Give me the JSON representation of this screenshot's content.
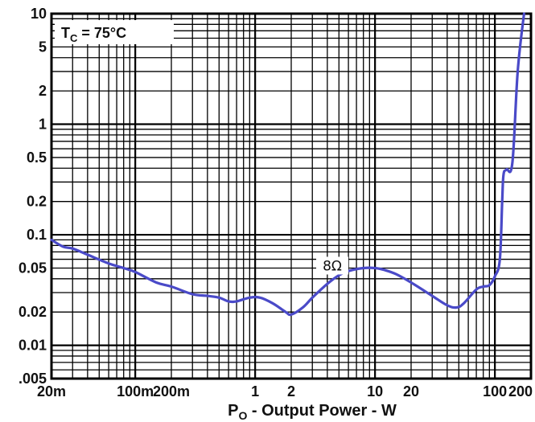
{
  "chart_data": {
    "type": "line",
    "title": "",
    "xlabel": {
      "main": "P",
      "sub": "O",
      "rest": " - Output Power - W"
    },
    "ylabel": "",
    "xscale": "log",
    "yscale": "log",
    "xlim": [
      0.02,
      200
    ],
    "ylim": [
      0.005,
      10
    ],
    "grid": true,
    "annotation": {
      "main": "T",
      "sub": "C",
      "rest": " = 75°C"
    },
    "x_ticks": [
      {
        "v": 0.02,
        "label": "20m"
      },
      {
        "v": 0.1,
        "label": "100m"
      },
      {
        "v": 0.2,
        "label": "200m"
      },
      {
        "v": 1,
        "label": "1"
      },
      {
        "v": 2,
        "label": "2"
      },
      {
        "v": 10,
        "label": "10"
      },
      {
        "v": 20,
        "label": "20"
      },
      {
        "v": 100,
        "label": "100"
      },
      {
        "v": 200,
        "label": "200"
      }
    ],
    "y_ticks": [
      {
        "v": 10,
        "label": "10"
      },
      {
        "v": 5,
        "label": "5"
      },
      {
        "v": 2,
        "label": "2"
      },
      {
        "v": 1,
        "label": "1"
      },
      {
        "v": 0.5,
        "label": "0.5"
      },
      {
        "v": 0.2,
        "label": "0.2"
      },
      {
        "v": 0.1,
        "label": "0.1"
      },
      {
        "v": 0.05,
        "label": "0.05"
      },
      {
        "v": 0.02,
        "label": "0.02"
      },
      {
        "v": 0.01,
        "label": "0.01"
      },
      {
        "v": 0.005,
        "label": ".005"
      }
    ],
    "series": [
      {
        "name": "8Ω",
        "color": "#4a4ac8",
        "points": [
          [
            0.02,
            0.09
          ],
          [
            0.025,
            0.078
          ],
          [
            0.03,
            0.075
          ],
          [
            0.04,
            0.066
          ],
          [
            0.06,
            0.055
          ],
          [
            0.08,
            0.05
          ],
          [
            0.1,
            0.046
          ],
          [
            0.15,
            0.037
          ],
          [
            0.2,
            0.034
          ],
          [
            0.3,
            0.029
          ],
          [
            0.4,
            0.028
          ],
          [
            0.5,
            0.027
          ],
          [
            0.6,
            0.025
          ],
          [
            0.7,
            0.025
          ],
          [
            0.9,
            0.027
          ],
          [
            1.1,
            0.027
          ],
          [
            1.4,
            0.024
          ],
          [
            1.8,
            0.02
          ],
          [
            2.0,
            0.019
          ],
          [
            2.5,
            0.022
          ],
          [
            3.0,
            0.027
          ],
          [
            4.0,
            0.036
          ],
          [
            5.0,
            0.043
          ],
          [
            6.0,
            0.047
          ],
          [
            8.0,
            0.05
          ],
          [
            10.0,
            0.05
          ],
          [
            12.0,
            0.048
          ],
          [
            15.0,
            0.044
          ],
          [
            20.0,
            0.037
          ],
          [
            30.0,
            0.028
          ],
          [
            40.0,
            0.023
          ],
          [
            48.0,
            0.022
          ],
          [
            55.0,
            0.024
          ],
          [
            70.0,
            0.032
          ],
          [
            80.0,
            0.034
          ],
          [
            90.0,
            0.035
          ],
          [
            100.0,
            0.042
          ],
          [
            110.0,
            0.06
          ],
          [
            115.0,
            0.2
          ],
          [
            118.0,
            0.35
          ],
          [
            125.0,
            0.39
          ],
          [
            140.0,
            0.45
          ],
          [
            155.0,
            3.0
          ],
          [
            175.0,
            10.0
          ]
        ]
      }
    ]
  }
}
